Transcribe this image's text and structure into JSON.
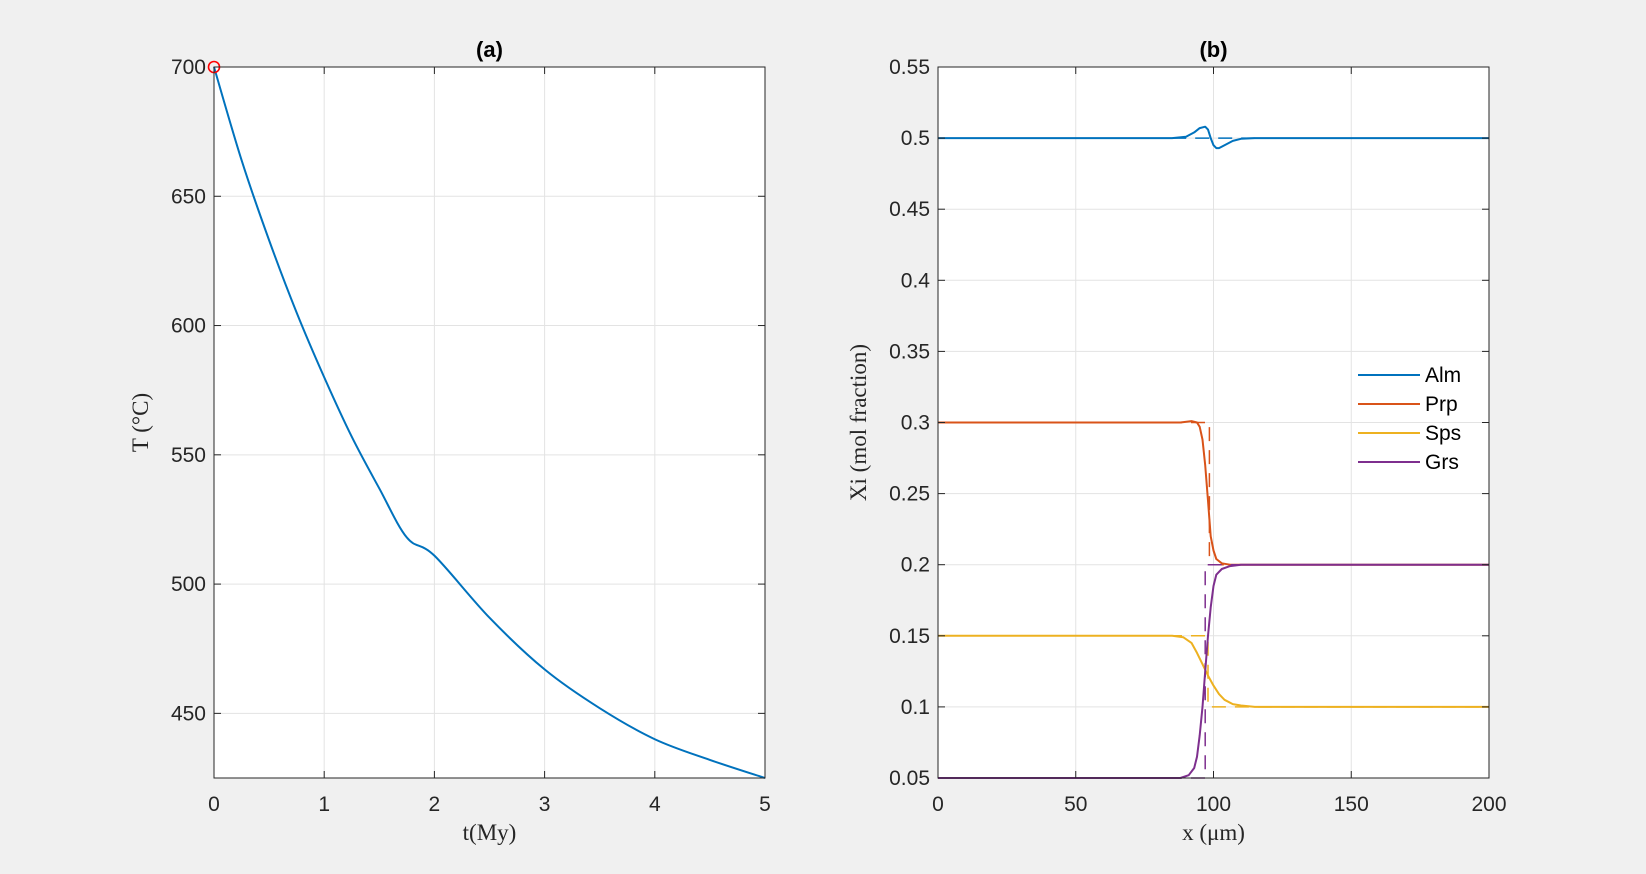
{
  "chart_data": [
    {
      "type": "line",
      "title": "(a)",
      "xlabel": "t(My)",
      "ylabel": "T (°C)",
      "xlim": [
        0,
        5
      ],
      "ylim": [
        425,
        700
      ],
      "xticks": [
        "0",
        "1",
        "2",
        "3",
        "4",
        "5"
      ],
      "yticks": [
        "450",
        "500",
        "550",
        "600",
        "650",
        "700"
      ],
      "grid": true,
      "series": [
        {
          "x": [
            0,
            0.25,
            0.5,
            0.75,
            1,
            1.25,
            1.5,
            1.75,
            2,
            2.5,
            3,
            3.5,
            4,
            4.5,
            5
          ],
          "y": [
            700,
            664,
            633,
            605,
            580,
            557,
            537,
            518,
            511,
            487,
            467,
            452,
            440,
            432,
            425
          ],
          "color": "#0072BD"
        }
      ],
      "markers": [
        {
          "x": 0,
          "y": 700,
          "style": "open-circle",
          "color": "#FF0000"
        }
      ]
    },
    {
      "type": "line",
      "title": "(b)",
      "xlabel": "x (μm)",
      "ylabel": "Xi (mol fraction)",
      "xlim": [
        0,
        200
      ],
      "ylim": [
        0.05,
        0.55
      ],
      "xticks": [
        "0",
        "50",
        "100",
        "150",
        "200"
      ],
      "yticks": [
        "0.05",
        "0.1",
        "0.15",
        "0.2",
        "0.25",
        "0.3",
        "0.35",
        "0.4",
        "0.45",
        "0.5",
        "0.55"
      ],
      "grid": true,
      "legend": "right",
      "series": [
        {
          "name": "Alm",
          "color": "#0072BD",
          "x": [
            0,
            85,
            90,
            93,
            95,
            97,
            98,
            99,
            100,
            101,
            102,
            104,
            107,
            110,
            115,
            200
          ],
          "y": [
            0.5,
            0.5,
            0.501,
            0.504,
            0.507,
            0.508,
            0.506,
            0.5,
            0.495,
            0.493,
            0.493,
            0.495,
            0.498,
            0.4995,
            0.5,
            0.5
          ],
          "dashed_x": [
            85,
            100,
            100,
            115
          ],
          "dashed_y": [
            0.5,
            0.5,
            0.5,
            0.5
          ]
        },
        {
          "name": "Prp",
          "color": "#D95319",
          "x": [
            0,
            88,
            92,
            94,
            95,
            96,
            97,
            98,
            99,
            100,
            101,
            103,
            106,
            110,
            200
          ],
          "y": [
            0.3,
            0.3,
            0.301,
            0.3,
            0.297,
            0.288,
            0.27,
            0.245,
            0.22,
            0.21,
            0.204,
            0.201,
            0.2,
            0.2,
            0.2
          ],
          "dashed_x": [
            0,
            98.5,
            98.5,
            200
          ],
          "dashed_y": [
            0.3,
            0.3,
            0.2,
            0.2
          ]
        },
        {
          "name": "Sps",
          "color": "#EDB120",
          "x": [
            0,
            85,
            89,
            92,
            94,
            96,
            98,
            100,
            102,
            104,
            107,
            110,
            115,
            200
          ],
          "y": [
            0.15,
            0.15,
            0.149,
            0.145,
            0.138,
            0.13,
            0.122,
            0.115,
            0.109,
            0.105,
            0.102,
            0.101,
            0.1,
            0.1
          ],
          "dashed_x": [
            0,
            98,
            98,
            200
          ],
          "dashed_y": [
            0.15,
            0.15,
            0.1,
            0.1
          ]
        },
        {
          "name": "Grs",
          "color": "#7E2F8E",
          "x": [
            0,
            88,
            91,
            93,
            94,
            95,
            96,
            97,
            98,
            99,
            100,
            101,
            103,
            106,
            110,
            200
          ],
          "y": [
            0.05,
            0.05,
            0.052,
            0.057,
            0.065,
            0.08,
            0.1,
            0.125,
            0.15,
            0.17,
            0.185,
            0.193,
            0.197,
            0.199,
            0.2,
            0.2
          ],
          "dashed_x": [
            0,
            97,
            97,
            200
          ],
          "dashed_y": [
            0.05,
            0.05,
            0.2,
            0.2
          ]
        }
      ]
    }
  ]
}
